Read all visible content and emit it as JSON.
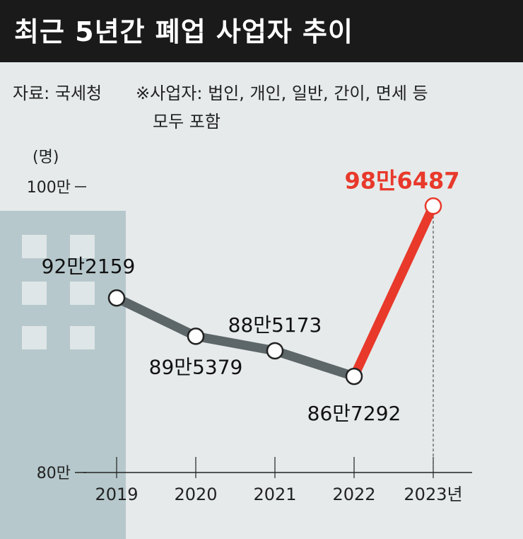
{
  "header": {
    "title": "최근 5년간 폐업 사업자 추이"
  },
  "source_text": "자료: 국세청",
  "note": {
    "line1": "※사업자: 법인, 개인, 일반, 간이, 면세 등",
    "line2": "모두 포함"
  },
  "unit_label": "(명)",
  "colors": {
    "header_bg": "#1a1a1a",
    "background": "#e6eaea",
    "building": "#b6c8cc",
    "building_window": "#dfe6e7",
    "line_gray": "#5d6669",
    "line_red": "#e8392b",
    "highlight_label": "#e8392b"
  },
  "chart_data": {
    "type": "line",
    "x": [
      "2019",
      "2020",
      "2021",
      "2022",
      "2023"
    ],
    "x_tick_labels": [
      "2019",
      "2020",
      "2021",
      "2022",
      "2023년"
    ],
    "values": [
      922159,
      895379,
      885173,
      867292,
      986487
    ],
    "data_labels": [
      "92만2159",
      "89만5379",
      "88만5173",
      "86만7292",
      "98만6487"
    ],
    "highlight_index": 4,
    "ylim": [
      800000,
      1000000
    ],
    "y_tick_values": [
      800000,
      1000000
    ],
    "y_tick_labels": [
      "80만",
      "100만"
    ],
    "grid": false
  }
}
